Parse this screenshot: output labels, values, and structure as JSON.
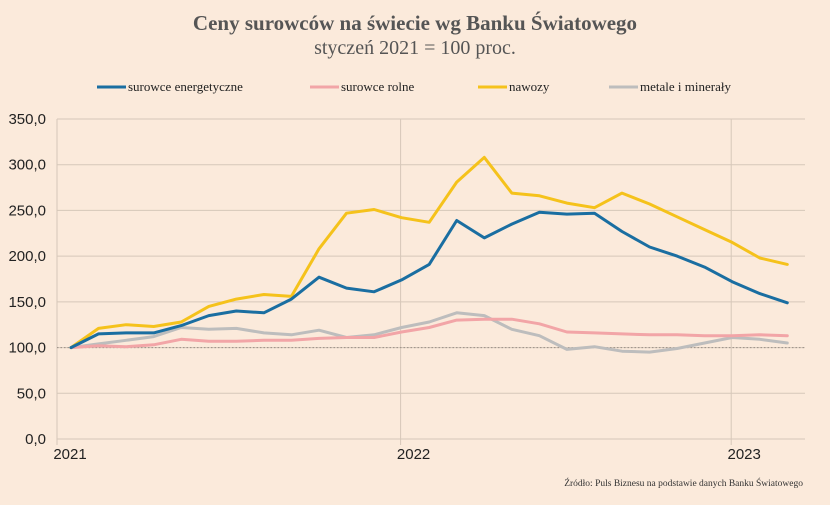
{
  "chart_data": {
    "type": "line",
    "title": "Ceny surowców na świecie wg Banku Światowego",
    "subtitle": "styczeń 2021 = 100 proc.",
    "source": "Źródło: Puls Biznesu na podstawie danych Banku Światowego",
    "ylim": [
      0,
      350
    ],
    "yticks": [
      "0,0",
      "50,0",
      "100,0",
      "150,0",
      "200,0",
      "250,0",
      "300,0",
      "350,0"
    ],
    "ytick_values": [
      0,
      50,
      100,
      150,
      200,
      250,
      300,
      350
    ],
    "xlim": [
      0,
      26.5
    ],
    "xticks": [
      {
        "label": "2021",
        "month": 0
      },
      {
        "label": "2022",
        "month": 12
      },
      {
        "label": "2023",
        "month": 24
      }
    ],
    "grid": true,
    "legend_position": "top",
    "reference_line": 100,
    "series": [
      {
        "name": "surowce energetyczne",
        "color": "#1a6ea1",
        "values": [
          100,
          115,
          116,
          116,
          124,
          135,
          140,
          138,
          153,
          177,
          165,
          161,
          174,
          191,
          239,
          220,
          235,
          248,
          246,
          247,
          227,
          210,
          200,
          188,
          172,
          159,
          149
        ]
      },
      {
        "name": "surowce rolne",
        "color": "#f2a5a7",
        "values": [
          100,
          102,
          101,
          103,
          109,
          107,
          107,
          108,
          108,
          110,
          111,
          111,
          117,
          122,
          130,
          131,
          131,
          126,
          117,
          116,
          115,
          114,
          114,
          113,
          113,
          114,
          113
        ]
      },
      {
        "name": "nawozy",
        "color": "#f5c21b",
        "values": [
          100,
          121,
          125,
          123,
          128,
          145,
          153,
          158,
          156,
          208,
          247,
          251,
          242,
          237,
          281,
          308,
          269,
          266,
          258,
          253,
          269,
          257,
          243,
          229,
          215,
          198,
          191
        ]
      },
      {
        "name": "metale i minerały",
        "color": "#bdbdbd",
        "values": [
          100,
          104,
          108,
          112,
          122,
          120,
          121,
          116,
          114,
          119,
          111,
          114,
          122,
          128,
          138,
          135,
          120,
          113,
          98,
          101,
          96,
          95,
          99,
          105,
          111,
          109,
          105
        ]
      }
    ]
  }
}
